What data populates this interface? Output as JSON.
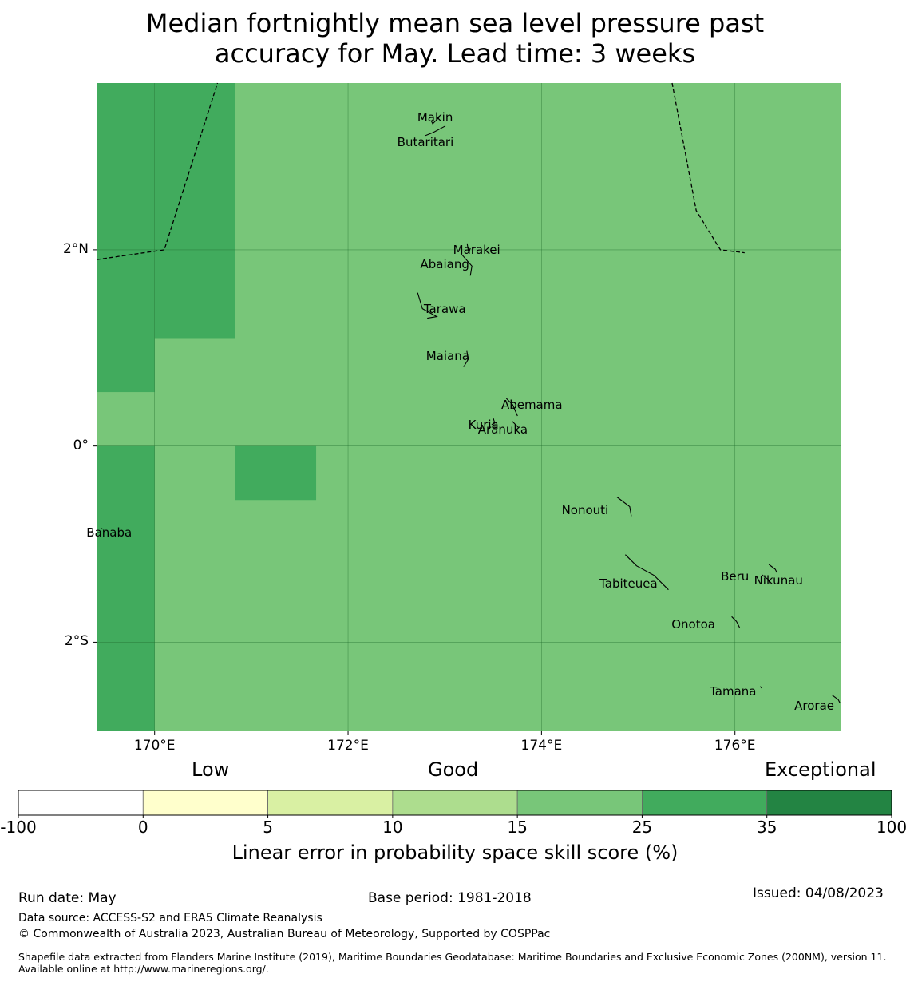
{
  "title_line1": "Median fortnightly mean sea level pressure past",
  "title_line2": "accuracy for May. Lead time: 3 weeks",
  "map": {
    "lon_range": [
      169.4,
      177.1
    ],
    "lat_range": [
      -2.9,
      3.7
    ],
    "grid_lon": [
      170,
      172,
      174,
      176
    ],
    "grid_lat": [
      2,
      0,
      -2
    ],
    "lon_tick_labels": [
      "170°E",
      "172°E",
      "174°E",
      "176°E"
    ],
    "lat_tick_labels": [
      "2°N",
      "0°",
      "2°S"
    ],
    "background_class_color": "#78c679",
    "higher_class_color": "#41ab5d",
    "higher_skill_cells": [
      {
        "lon": [
          169.4,
          170.0
        ],
        "lat": [
          -2.9,
          0.0
        ]
      },
      {
        "lon": [
          169.4,
          170.0
        ],
        "lat": [
          0.55,
          3.7
        ]
      },
      {
        "lon": [
          170.0,
          170.83
        ],
        "lat": [
          1.1,
          3.7
        ]
      },
      {
        "lon": [
          170.83,
          171.67
        ],
        "lat": [
          -0.55,
          0.0
        ]
      }
    ],
    "boundary_west": [
      [
        169.4,
        1.9
      ],
      [
        170.1,
        2.0
      ],
      [
        170.65,
        3.7
      ]
    ],
    "boundary_east": [
      [
        175.35,
        3.7
      ],
      [
        175.6,
        2.4
      ],
      [
        175.85,
        2.0
      ],
      [
        176.1,
        1.97
      ]
    ],
    "islands": [
      {
        "name": "Makin",
        "lon": 172.9,
        "lat": 3.35
      },
      {
        "name": "Butaritari",
        "lon": 172.8,
        "lat": 3.1
      },
      {
        "name": "Marakei",
        "lon": 173.33,
        "lat": 2.0
      },
      {
        "name": "Abaiang",
        "lon": 173.0,
        "lat": 1.85
      },
      {
        "name": "Tarawa",
        "lon": 173.0,
        "lat": 1.4
      },
      {
        "name": "Maiana",
        "lon": 173.03,
        "lat": 0.92
      },
      {
        "name": "Abemama",
        "lon": 173.9,
        "lat": 0.42
      },
      {
        "name": "Kuria",
        "lon": 173.4,
        "lat": 0.22
      },
      {
        "name": "Aranuka",
        "lon": 173.6,
        "lat": 0.17
      },
      {
        "name": "Nonouti",
        "lon": 174.45,
        "lat": -0.65
      },
      {
        "name": "Banaba",
        "lon": 169.53,
        "lat": -0.88
      },
      {
        "name": "Tabiteuea",
        "lon": 174.9,
        "lat": -1.4
      },
      {
        "name": "Beru",
        "lon": 176.0,
        "lat": -1.33
      },
      {
        "name": "Nikunau",
        "lon": 176.45,
        "lat": -1.37
      },
      {
        "name": "Onotoa",
        "lon": 175.57,
        "lat": -1.82
      },
      {
        "name": "Tamana",
        "lon": 175.98,
        "lat": -2.5
      },
      {
        "name": "Arorae",
        "lon": 176.82,
        "lat": -2.65
      }
    ]
  },
  "colorbar": {
    "category_labels": [
      "Low",
      "Good",
      "Exceptional"
    ],
    "bins": [
      {
        "from": -100,
        "to": 0,
        "color": "#ffffff"
      },
      {
        "from": 0,
        "to": 5,
        "color": "#ffffcc"
      },
      {
        "from": 5,
        "to": 10,
        "color": "#d9f0a3"
      },
      {
        "from": 10,
        "to": 15,
        "color": "#addd8e"
      },
      {
        "from": 15,
        "to": 25,
        "color": "#78c679"
      },
      {
        "from": 25,
        "to": 35,
        "color": "#41ab5d"
      },
      {
        "from": 35,
        "to": 100,
        "color": "#238443"
      }
    ],
    "tick_labels": [
      "-100",
      "0",
      "5",
      "10",
      "15",
      "25",
      "35",
      "100"
    ],
    "caption": "Linear error in probability space skill score (%)"
  },
  "footer": {
    "run_date": "Run date: May",
    "base_period": "Base period: 1981-2018",
    "issued": "Issued: 04/08/2023",
    "data_source": "Data source: ACCESS-S2 and ERA5 Climate Reanalysis",
    "copyright": "© Commonwealth of Australia 2023, Australian Bureau of Meteorology, Supported by COSPPac",
    "shapefile_note": "Shapefile data extracted from Flanders Marine Institute (2019), Maritime Boundaries Geodatabase: Maritime Boundaries and Exclusive Economic Zones (200NM), version 11. Available online at http://www.marineregions.org/."
  }
}
